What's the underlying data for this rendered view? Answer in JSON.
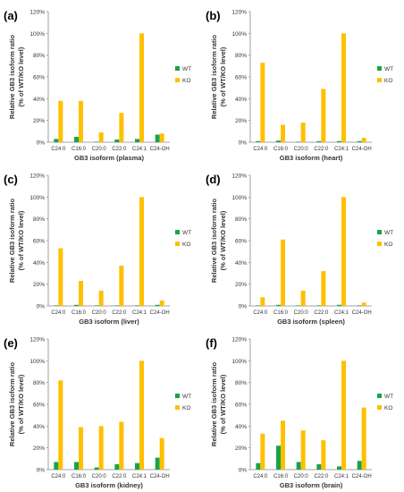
{
  "colors": {
    "wt": "#1aa34a",
    "ko": "#ffc000",
    "axis": "#888888",
    "text": "#333333"
  },
  "chart_data": [
    {
      "type": "bar",
      "panel_label": "(a)",
      "title": "",
      "xlabel": "GB3 isoform (plasma)",
      "ylabel": "Relative GB3 isoform ratio",
      "ylabel2": "(% of WT/KO level)",
      "ylim": [
        0,
        120
      ],
      "yticks": [
        "0%",
        "20%",
        "40%",
        "60%",
        "80%",
        "100%",
        "120%"
      ],
      "categories": [
        "C24:0",
        "C16:0",
        "C20:0",
        "C22:0",
        "C24:1",
        "C24-OH"
      ],
      "series": [
        {
          "name": "WT",
          "values": [
            3,
            5,
            0.5,
            2.5,
            3,
            7
          ]
        },
        {
          "name": "KO",
          "values": [
            38,
            38,
            9,
            27,
            100,
            8
          ]
        }
      ],
      "legend": "right"
    },
    {
      "type": "bar",
      "panel_label": "(b)",
      "title": "",
      "xlabel": "GB3 isoform (heart)",
      "ylabel": "Relative GB3 isoform ratio",
      "ylabel2": "(% of WT/KO level)",
      "ylim": [
        0,
        120
      ],
      "yticks": [
        "0%",
        "20%",
        "40%",
        "60%",
        "80%",
        "100%",
        "120%"
      ],
      "categories": [
        "C24:0",
        "C16:0",
        "C20:0",
        "C22:0",
        "C24:1",
        "C24-OH"
      ],
      "series": [
        {
          "name": "WT",
          "values": [
            1,
            1.5,
            0.5,
            1,
            1,
            1
          ]
        },
        {
          "name": "KO",
          "values": [
            73,
            16,
            18,
            49,
            100,
            4
          ]
        }
      ],
      "legend": "right"
    },
    {
      "type": "bar",
      "panel_label": "(c)",
      "title": "",
      "xlabel": "GB3 isoform (liver)",
      "ylabel": "Relative GB3 isoform ratio",
      "ylabel2": "(% of WT/KO level)",
      "ylim": [
        0,
        120
      ],
      "yticks": [
        "0%",
        "20%",
        "40%",
        "60%",
        "80%",
        "100%",
        "120%"
      ],
      "categories": [
        "C24:0",
        "C16:0",
        "C20:0",
        "C22:0",
        "C24:1",
        "C24-OH"
      ],
      "series": [
        {
          "name": "WT",
          "values": [
            0.5,
            1,
            0.5,
            0.5,
            0.5,
            1
          ]
        },
        {
          "name": "KO",
          "values": [
            53,
            23,
            14,
            37,
            100,
            5
          ]
        }
      ],
      "legend": "right"
    },
    {
      "type": "bar",
      "panel_label": "(d)",
      "title": "",
      "xlabel": "GB3 isoform (spleen)",
      "ylabel": "Relative GB3 isoform ratio",
      "ylabel2": "(% of WT/KO level)",
      "ylim": [
        0,
        120
      ],
      "yticks": [
        "0%",
        "20%",
        "40%",
        "60%",
        "80%",
        "100%",
        "120%"
      ],
      "categories": [
        "C24:0",
        "C16:0",
        "C20:0",
        "C22:0",
        "C24:1",
        "C24-OH"
      ],
      "series": [
        {
          "name": "WT",
          "values": [
            0.5,
            1,
            0.5,
            0.5,
            1,
            0.5
          ]
        },
        {
          "name": "KO",
          "values": [
            8,
            61,
            14,
            32,
            100,
            3
          ]
        }
      ],
      "legend": "right"
    },
    {
      "type": "bar",
      "panel_label": "(e)",
      "title": "",
      "xlabel": "GB3 isoform (kidney)",
      "ylabel": "Relative GB3 isoform ratio",
      "ylabel2": "(% of WT/KO level)",
      "ylim": [
        0,
        120
      ],
      "yticks": [
        "0%",
        "20%",
        "40%",
        "60%",
        "80%",
        "100%",
        "120%"
      ],
      "categories": [
        "C24:0",
        "C16:0",
        "C20:0",
        "C22:0",
        "C24:1",
        "C24-OH"
      ],
      "series": [
        {
          "name": "WT",
          "values": [
            7,
            7,
            2,
            5,
            6,
            11
          ]
        },
        {
          "name": "KO",
          "values": [
            82,
            39,
            40,
            44,
            100,
            29
          ]
        }
      ],
      "legend": "right"
    },
    {
      "type": "bar",
      "panel_label": "(f)",
      "title": "",
      "xlabel": "GB3 isoform (brain)",
      "ylabel": "Relative GB3 isoform ratio",
      "ylabel2": "(% of WT/KO level)",
      "ylim": [
        0,
        120
      ],
      "yticks": [
        "0%",
        "20%",
        "40%",
        "60%",
        "80%",
        "100%",
        "120%"
      ],
      "categories": [
        "C24:0",
        "C16:0",
        "C20:0",
        "C22:0",
        "C24:1",
        "C24-OH"
      ],
      "series": [
        {
          "name": "WT",
          "values": [
            6,
            22,
            7,
            5,
            3,
            8
          ]
        },
        {
          "name": "KO",
          "values": [
            33,
            45,
            36,
            27,
            100,
            57
          ]
        }
      ],
      "legend": "right"
    }
  ]
}
